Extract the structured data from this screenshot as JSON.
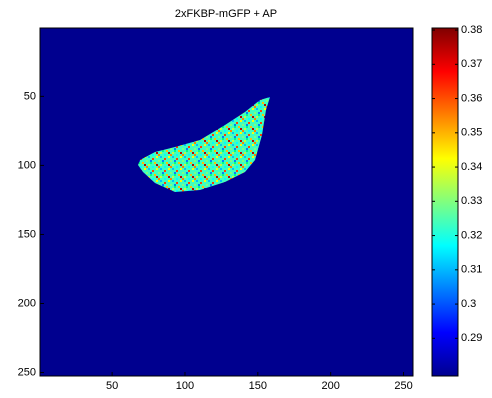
{
  "chart_data": {
    "type": "heatmap",
    "title": "2xFKBP-mGFP + AP",
    "xlim": [
      0.5,
      256.5
    ],
    "ylim": [
      0.5,
      252.5
    ],
    "xticks": [
      50,
      100,
      150,
      200,
      250
    ],
    "yticks": [
      50,
      100,
      150,
      200,
      250
    ],
    "colorbar": {
      "clim": [
        0.279,
        0.3806
      ],
      "ticks": [
        0.29,
        0.3,
        0.31,
        0.32,
        0.33,
        0.34,
        0.35,
        0.36,
        0.37,
        0.38
      ]
    }
  }
}
